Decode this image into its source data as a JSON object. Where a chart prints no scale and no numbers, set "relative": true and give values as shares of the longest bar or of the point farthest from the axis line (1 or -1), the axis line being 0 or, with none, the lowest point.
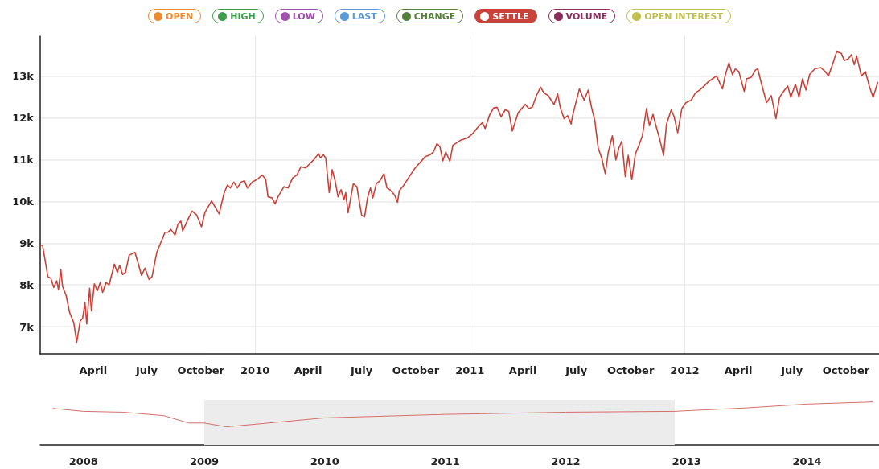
{
  "chart_data": [
    {
      "type": "line",
      "legend": "top",
      "grid": true,
      "xlim": [
        "2009-01-01",
        "2012-11-26"
      ],
      "xticks": [
        {
          "value": "2009-04-01",
          "label": "April"
        },
        {
          "value": "2009-07-01",
          "label": "July"
        },
        {
          "value": "2009-10-01",
          "label": "October"
        },
        {
          "value": "2010-01-01",
          "label": "2010"
        },
        {
          "value": "2010-04-01",
          "label": "April"
        },
        {
          "value": "2010-07-01",
          "label": "July"
        },
        {
          "value": "2010-10-01",
          "label": "October"
        },
        {
          "value": "2011-01-01",
          "label": "2011"
        },
        {
          "value": "2011-04-01",
          "label": "April"
        },
        {
          "value": "2011-07-01",
          "label": "July"
        },
        {
          "value": "2011-10-01",
          "label": "October"
        },
        {
          "value": "2012-01-01",
          "label": "2012"
        },
        {
          "value": "2012-04-01",
          "label": "April"
        },
        {
          "value": "2012-07-01",
          "label": "July"
        },
        {
          "value": "2012-10-01",
          "label": "October"
        }
      ],
      "ylim": [
        6350,
        13950
      ],
      "yticks": [
        {
          "value": 7000,
          "label": "7k"
        },
        {
          "value": 8000,
          "label": "8k"
        },
        {
          "value": 9000,
          "label": "9k"
        },
        {
          "value": 10000,
          "label": "10k"
        },
        {
          "value": 11000,
          "label": "11k"
        },
        {
          "value": 12000,
          "label": "12k"
        },
        {
          "value": 13000,
          "label": "13k"
        }
      ],
      "series": [
        {
          "name": "OPEN",
          "color": "#ee8a30"
        },
        {
          "name": "HIGH",
          "color": "#3d9e4c"
        },
        {
          "name": "LOW",
          "color": "#a050ad"
        },
        {
          "name": "LAST",
          "color": "#5b9ad6"
        },
        {
          "name": "CHANGE",
          "color": "#55803a"
        },
        {
          "name": "SETTLE",
          "color": "#c9433a",
          "x": [
            "2009-01-01",
            "2009-01-05",
            "2009-01-14",
            "2009-01-19",
            "2009-01-24",
            "2009-01-29",
            "2009-02-01",
            "2009-02-05",
            "2009-02-08",
            "2009-02-14",
            "2009-02-20",
            "2009-02-27",
            "2009-03-04",
            "2009-03-10",
            "2009-03-14",
            "2009-03-18",
            "2009-03-21",
            "2009-03-26",
            "2009-03-29",
            "2009-04-03",
            "2009-04-08",
            "2009-04-13",
            "2009-04-17",
            "2009-04-23",
            "2009-04-28",
            "2009-05-07",
            "2009-05-12",
            "2009-05-16",
            "2009-05-21",
            "2009-05-26",
            "2009-06-01",
            "2009-06-11",
            "2009-06-16",
            "2009-06-22",
            "2009-06-28",
            "2009-07-05",
            "2009-07-10",
            "2009-07-18",
            "2009-07-25",
            "2009-08-01",
            "2009-08-06",
            "2009-08-11",
            "2009-08-18",
            "2009-08-23",
            "2009-08-28",
            "2009-08-31",
            "2009-09-10",
            "2009-09-16",
            "2009-09-24",
            "2009-10-02",
            "2009-10-08",
            "2009-10-19",
            "2009-10-25",
            "2009-11-01",
            "2009-11-09",
            "2009-11-15",
            "2009-11-20",
            "2009-11-26",
            "2009-12-02",
            "2009-12-08",
            "2009-12-14",
            "2009-12-19",
            "2009-12-27",
            "2010-01-05",
            "2010-01-13",
            "2010-01-19",
            "2010-01-23",
            "2010-01-30",
            "2010-02-04",
            "2010-02-09",
            "2010-02-19",
            "2010-02-26",
            "2010-03-06",
            "2010-03-13",
            "2010-03-20",
            "2010-03-28",
            "2010-04-04",
            "2010-04-11",
            "2010-04-19",
            "2010-04-22",
            "2010-04-27",
            "2010-05-01",
            "2010-05-07",
            "2010-05-12",
            "2010-05-17",
            "2010-05-22",
            "2010-05-27",
            "2010-06-01",
            "2010-06-04",
            "2010-06-08",
            "2010-06-17",
            "2010-06-23",
            "2010-07-01",
            "2010-07-06",
            "2010-07-11",
            "2010-07-16",
            "2010-07-20",
            "2010-07-26",
            "2010-08-01",
            "2010-08-08",
            "2010-08-13",
            "2010-08-18",
            "2010-08-26",
            "2010-08-31",
            "2010-09-03",
            "2010-09-11",
            "2010-09-20",
            "2010-09-30",
            "2010-10-11",
            "2010-10-17",
            "2010-10-25",
            "2010-10-31",
            "2010-11-06",
            "2010-11-11",
            "2010-11-16",
            "2010-11-21",
            "2010-11-28",
            "2010-12-03",
            "2010-12-17",
            "2010-12-27",
            "2011-01-05",
            "2011-01-15",
            "2011-01-22",
            "2011-01-27",
            "2011-02-03",
            "2011-02-10",
            "2011-02-16",
            "2011-02-23",
            "2011-03-02",
            "2011-03-08",
            "2011-03-14",
            "2011-03-24",
            "2011-04-05",
            "2011-04-11",
            "2011-04-17",
            "2011-04-24",
            "2011-05-01",
            "2011-05-07",
            "2011-05-14",
            "2011-05-19",
            "2011-05-24",
            "2011-05-30",
            "2011-06-04",
            "2011-06-10",
            "2011-06-16",
            "2011-06-22",
            "2011-06-24",
            "2011-06-30",
            "2011-07-06",
            "2011-07-14",
            "2011-07-21",
            "2011-07-27",
            "2011-08-01",
            "2011-08-07",
            "2011-08-13",
            "2011-08-19",
            "2011-08-24",
            "2011-08-31",
            "2011-09-06",
            "2011-09-11",
            "2011-09-16",
            "2011-09-22",
            "2011-09-27",
            "2011-10-03",
            "2011-10-09",
            "2011-10-16",
            "2011-10-21",
            "2011-10-28",
            "2011-11-02",
            "2011-11-08",
            "2011-11-13",
            "2011-11-19",
            "2011-11-26",
            "2011-12-01",
            "2011-12-09",
            "2011-12-14",
            "2011-12-20",
            "2011-12-27",
            "2012-01-03",
            "2012-01-12",
            "2012-01-19",
            "2012-01-26",
            "2012-02-03",
            "2012-02-10",
            "2012-02-17",
            "2012-02-24",
            "2012-03-05",
            "2012-03-10",
            "2012-03-16",
            "2012-03-22",
            "2012-03-27",
            "2012-04-02",
            "2012-04-11",
            "2012-04-15",
            "2012-04-23",
            "2012-04-30",
            "2012-05-04",
            "2012-05-10",
            "2012-05-19",
            "2012-05-27",
            "2012-06-04",
            "2012-06-10",
            "2012-06-17",
            "2012-06-24",
            "2012-06-29",
            "2012-07-07",
            "2012-07-13",
            "2012-07-19",
            "2012-07-25",
            "2012-07-31",
            "2012-08-09",
            "2012-08-19",
            "2012-08-27",
            "2012-09-01",
            "2012-09-08",
            "2012-09-15",
            "2012-09-23",
            "2012-09-28",
            "2012-10-05",
            "2012-10-10",
            "2012-10-15",
            "2012-10-19",
            "2012-10-27",
            "2012-11-03",
            "2012-11-10",
            "2012-11-16",
            "2012-11-24"
          ],
          "values": [
            8950,
            8950,
            8200,
            8160,
            7940,
            8100,
            7890,
            8370,
            7960,
            7750,
            7340,
            7100,
            6630,
            7140,
            7200,
            7580,
            7070,
            7920,
            7380,
            8030,
            7860,
            8060,
            7820,
            8060,
            8000,
            8500,
            8300,
            8470,
            8250,
            8300,
            8710,
            8780,
            8540,
            8230,
            8400,
            8130,
            8200,
            8780,
            9020,
            9260,
            9260,
            9330,
            9190,
            9460,
            9530,
            9290,
            9600,
            9770,
            9670,
            9390,
            9740,
            10010,
            9870,
            9700,
            10180,
            10390,
            10320,
            10460,
            10320,
            10460,
            10490,
            10320,
            10460,
            10530,
            10630,
            10530,
            10110,
            10080,
            9940,
            10110,
            10350,
            10320,
            10560,
            10630,
            10830,
            10800,
            10900,
            11000,
            11140,
            11040,
            11110,
            11040,
            10210,
            10760,
            10490,
            10110,
            10280,
            10040,
            10210,
            9730,
            10420,
            10350,
            9670,
            9630,
            10080,
            10320,
            10080,
            10420,
            10490,
            10660,
            10320,
            10280,
            10150,
            9980,
            10250,
            10390,
            10590,
            10800,
            10970,
            11070,
            11110,
            11180,
            11380,
            11310,
            10970,
            11180,
            10960,
            11340,
            11470,
            11510,
            11610,
            11780,
            11880,
            11740,
            12050,
            12230,
            12250,
            12020,
            12190,
            12150,
            11680,
            12120,
            12320,
            12220,
            12250,
            12530,
            12730,
            12590,
            12530,
            12420,
            12320,
            12570,
            12220,
            11980,
            12050,
            11850,
            12020,
            12360,
            12690,
            12420,
            12660,
            12220,
            11950,
            11270,
            11030,
            10660,
            11170,
            11570,
            10990,
            11270,
            11440,
            10590,
            11100,
            10520,
            11130,
            11370,
            11570,
            12220,
            11810,
            12080,
            11810,
            11510,
            11100,
            11850,
            12190,
            12020,
            11640,
            12220,
            12360,
            12420,
            12590,
            12660,
            12760,
            12860,
            12930,
            13000,
            12690,
            13030,
            13310,
            13030,
            13170,
            13100,
            12630,
            12930,
            12970,
            13140,
            13170,
            12830,
            12360,
            12530,
            11980,
            12490,
            12630,
            12760,
            12490,
            12800,
            12490,
            12930,
            12660,
            13030,
            13170,
            13200,
            13100,
            13000,
            13270,
            13580,
            13540,
            13370,
            13410,
            13510,
            13270,
            13480,
            13000,
            13100,
            12730,
            12490,
            12860
          ]
        },
        {
          "name": "VOLUME",
          "color": "#8a2d5c"
        },
        {
          "name": "OPEN INTEREST",
          "color": "#c2c04e"
        }
      ]
    },
    {
      "type": "line",
      "relative": true,
      "tick_labels": "x",
      "color": "#d2716a",
      "xlim": [
        "2007-08-23",
        "2014-08-07"
      ],
      "xticks": [
        {
          "value": "2008-01-01",
          "label": "2008"
        },
        {
          "value": "2009-01-01",
          "label": "2009"
        },
        {
          "value": "2010-01-01",
          "label": "2010"
        },
        {
          "value": "2011-01-01",
          "label": "2011"
        },
        {
          "value": "2012-01-01",
          "label": "2012"
        },
        {
          "value": "2013-01-01",
          "label": "2013"
        },
        {
          "value": "2014-01-01",
          "label": "2014"
        }
      ],
      "x": [
        "2007-09-30",
        "2008-01-01",
        "2008-05-01",
        "2008-09-01",
        "2008-10-15",
        "2008-11-15",
        "2008-12-31",
        "2009-03-10",
        "2010-01-01",
        "2011-01-01",
        "2012-01-01",
        "2012-11-26",
        "2013-01-15",
        "2013-07-01",
        "2014-01-01",
        "2014-07-20"
      ],
      "values": [
        0.85,
        0.78,
        0.76,
        0.68,
        0.58,
        0.51,
        0.51,
        0.42,
        0.63,
        0.71,
        0.76,
        0.78,
        0.8,
        0.86,
        0.95,
        1
      ],
      "bands": [
        {
          "axis": "x",
          "from": "2009-01-01",
          "to": "2012-11-26",
          "color": "#ececec"
        }
      ]
    }
  ]
}
